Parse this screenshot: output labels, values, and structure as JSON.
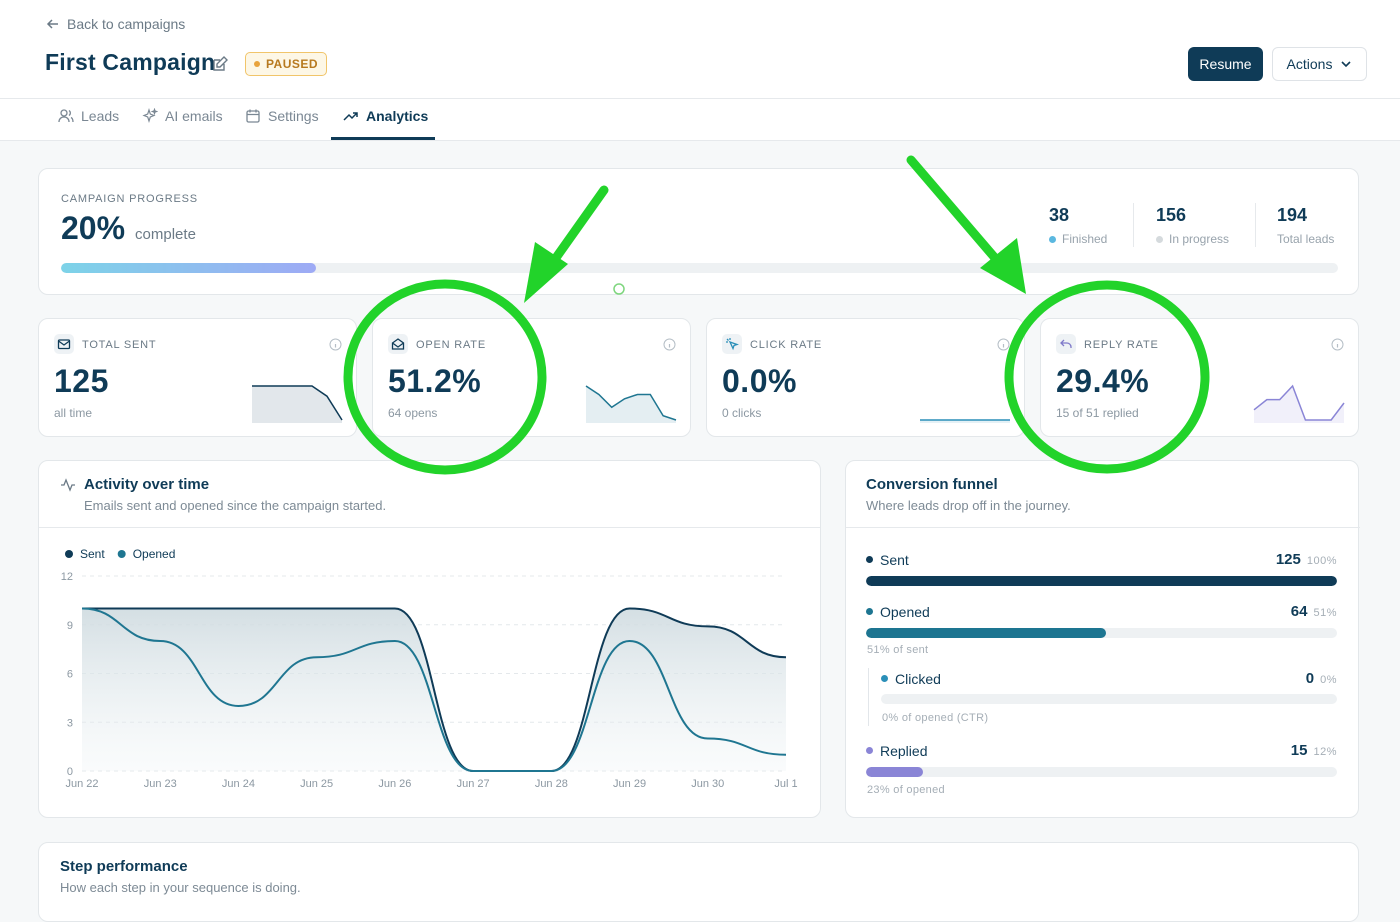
{
  "nav": {
    "back": "Back to campaigns"
  },
  "header": {
    "title": "First Campaign",
    "status": "PAUSED",
    "resume": "Resume",
    "actions": "Actions"
  },
  "tabs": [
    "Leads",
    "AI emails",
    "Settings",
    "Analytics"
  ],
  "progress": {
    "label": "CAMPAIGN PROGRESS",
    "percent": 20,
    "percent_label": "20%",
    "complete": "complete",
    "stats": [
      {
        "value": 38,
        "label": "Finished"
      },
      {
        "value": 156,
        "label": "In progress"
      },
      {
        "value": 194,
        "label": "Total leads"
      }
    ]
  },
  "metrics": [
    {
      "label": "TOTAL SENT",
      "value": "125",
      "sub": "all time",
      "spark": [
        10,
        10,
        10,
        10,
        10,
        7,
        0
      ]
    },
    {
      "label": "OPEN RATE",
      "value": "51.2%",
      "sub": "64 opens",
      "spark": [
        8,
        6,
        3,
        5,
        6,
        6,
        1,
        0
      ]
    },
    {
      "label": "CLICK RATE",
      "value": "0.0%",
      "sub": "0 clicks",
      "spark": [
        0,
        0,
        0,
        0,
        0,
        0,
        0
      ]
    },
    {
      "label": "REPLY RATE",
      "value": "29.4%",
      "sub": "15 of 51 replied",
      "spark": [
        3,
        6,
        6,
        10,
        0,
        0,
        0,
        5
      ]
    }
  ],
  "chart_data": {
    "type": "line",
    "title": "Activity over time",
    "subtitle": "Emails sent and opened since the campaign started.",
    "categories": [
      "Jun 22",
      "Jun 23",
      "Jun 24",
      "Jun 25",
      "Jun 26",
      "Jun 27",
      "Jun 28",
      "Jun 29",
      "Jun 30",
      "Jul 1"
    ],
    "series": [
      {
        "name": "Sent",
        "color": "#0f3b57",
        "values": [
          10,
          10,
          10,
          10,
          10,
          0,
          0,
          10,
          8.9,
          7
        ]
      },
      {
        "name": "Opened",
        "color": "#1f7691",
        "values": [
          10,
          8,
          4,
          7,
          8,
          0,
          0,
          8,
          2,
          1
        ]
      }
    ],
    "ylim": [
      0,
      12
    ],
    "yticks": [
      0,
      3,
      6,
      9,
      12
    ],
    "grid": true
  },
  "funnel": {
    "title": "Conversion funnel",
    "subtitle": "Where leads drop off in the journey.",
    "stages": [
      {
        "name": "Sent",
        "count": 125,
        "pct": 100,
        "pct_label": "100%",
        "color": "#0f3b57"
      },
      {
        "name": "Opened",
        "count": 64,
        "pct": 51,
        "pct_label": "51%",
        "color": "#1d7591",
        "note": "51% of sent"
      },
      {
        "name": "Clicked",
        "count": 0,
        "pct": 0,
        "pct_label": "0%",
        "color": "#2b8fb8",
        "note": "0% of opened (CTR)"
      },
      {
        "name": "Replied",
        "count": 15,
        "pct": 12,
        "pct_label": "12%",
        "color": "#8a85d6",
        "note": "23% of opened"
      }
    ]
  },
  "step": {
    "title": "Step performance",
    "subtitle": "How each step in your sequence is doing."
  }
}
